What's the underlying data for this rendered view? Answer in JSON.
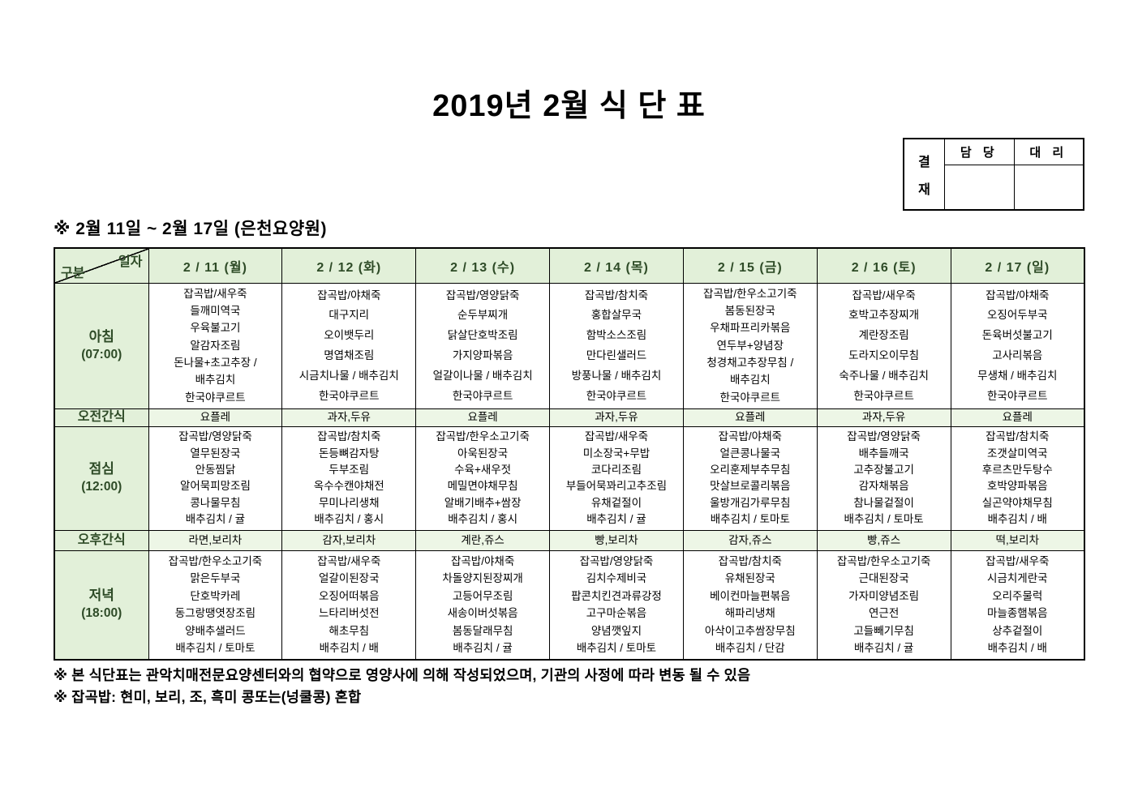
{
  "title": "2019년 2월 식 단 표",
  "approval": {
    "stamp": [
      "결",
      "재"
    ],
    "columns": [
      "담 당",
      "대 리"
    ]
  },
  "subtitle": "※ 2월 11일 ~ 2월 17일 (은천요양원)",
  "table": {
    "corner": {
      "top": "일자",
      "bottom": "구분"
    },
    "columns": [
      "2 / 11 (월)",
      "2 / 12 (화)",
      "2 / 13 (수)",
      "2 / 14 (목)",
      "2 / 15 (금)",
      "2 / 16 (토)",
      "2 / 17 (일)"
    ],
    "rows": [
      {
        "key": "breakfast",
        "type": "meal",
        "label": "아침",
        "time": "(07:00)",
        "cells": [
          [
            "잡곡밥/새우죽",
            "들깨미역국",
            "우육불고기",
            "알감자조림",
            "돈나물+초고추장 /",
            "배추김치",
            "한국야쿠르트"
          ],
          [
            "잡곡밥/야채죽",
            "대구지리",
            "오이뱃두리",
            "명엽채조림",
            "시금치나물 / 배추김치",
            "한국야쿠르트"
          ],
          [
            "잡곡밥/영양닭죽",
            "순두부찌개",
            "닭살단호박조림",
            "가지양파볶음",
            "얼갈이나물 / 배추김치",
            "한국야쿠르트"
          ],
          [
            "잡곡밥/참치죽",
            "홍합살무국",
            "함박소스조림",
            "만다린샐러드",
            "방풍나물 / 배추김치",
            "한국야쿠르트"
          ],
          [
            "잡곡밥/한우소고기죽",
            "봄동된장국",
            "우채파프리카볶음",
            "연두부+양념장",
            "청경채고추장무침 /",
            "배추김치",
            "한국야쿠르트"
          ],
          [
            "잡곡밥/새우죽",
            "호박고추장찌개",
            "계란장조림",
            "도라지오이무침",
            "숙주나물 / 배추김치",
            "한국야쿠르트"
          ],
          [
            "잡곡밥/야채죽",
            "오징어두부국",
            "돈육버섯불고기",
            "고사리볶음",
            "무생채 / 배추김치",
            "한국야쿠르트"
          ]
        ]
      },
      {
        "key": "morning-snack",
        "type": "snack",
        "label": "오전간식",
        "cells": [
          "요플레",
          "과자,두유",
          "요플레",
          "과자,두유",
          "요플레",
          "과자,두유",
          "요플레"
        ]
      },
      {
        "key": "lunch",
        "type": "meal",
        "label": "점심",
        "time": "(12:00)",
        "cells": [
          [
            "잡곡밥/영양닭죽",
            "열무된장국",
            "안동찜닭",
            "알어묵피망조림",
            "콩나물무침",
            "배추김치 / 귤"
          ],
          [
            "잡곡밥/참치죽",
            "돈등뼈감자탕",
            "두부조림",
            "옥수수캔야채전",
            "무미나리생채",
            "배추김치 / 홍시"
          ],
          [
            "잡곡밥/한우소고기죽",
            "아욱된장국",
            "수육+새우젓",
            "메밀면야채무침",
            "알배기배추+쌈장",
            "배추김치 / 홍시"
          ],
          [
            "잡곡밥/새우죽",
            "미소장국+무밥",
            "코다리조림",
            "부들어묵꽈리고추조림",
            "유채겉절이",
            "배추김치 / 귤"
          ],
          [
            "잡곡밥/야채죽",
            "얼큰콩나물국",
            "오리훈제부추무침",
            "맛살브로콜리볶음",
            "울방개김가루무침",
            "배추김치 / 토마토"
          ],
          [
            "잡곡밥/영양닭죽",
            "배추들깨국",
            "고추장불고기",
            "감자채볶음",
            "참나물겉절이",
            "배추김치 / 토마토"
          ],
          [
            "잡곡밥/참치죽",
            "조갯살미역국",
            "후르츠만두탕수",
            "호박양파볶음",
            "실곤약야채무침",
            "배추김치 / 배"
          ]
        ]
      },
      {
        "key": "afternoon-snack",
        "type": "snack",
        "label": "오후간식",
        "cells": [
          "라면,보리차",
          "감자,보리차",
          "계란,쥬스",
          "빵,보리차",
          "감자,쥬스",
          "빵,쥬스",
          "떡,보리차"
        ]
      },
      {
        "key": "dinner",
        "type": "meal",
        "label": "저녁",
        "time": "(18:00)",
        "cells": [
          [
            "잡곡밥/한우소고기죽",
            "맑은두부국",
            "단호박카레",
            "동그랑땡엿장조림",
            "양배추샐러드",
            "배추김치 / 토마토"
          ],
          [
            "잡곡밥/새우죽",
            "얼갈이된장국",
            "오징어떠볶음",
            "느타리버섯전",
            "해초무침",
            "배추김치 / 배"
          ],
          [
            "잡곡밥/야채죽",
            "차돌양지된장찌개",
            "고등어무조림",
            "새송이버섯볶음",
            "봄동달래무침",
            "배추김치 / 귤"
          ],
          [
            "잡곡밥/영양닭죽",
            "김치수제비국",
            "팝콘치킨견과류강정",
            "고구마순볶음",
            "양념깻잎지",
            "배추김치 / 토마토"
          ],
          [
            "잡곡밥/참치죽",
            "유채된장국",
            "베이컨마늘편볶음",
            "해파리냉채",
            "아삭이고추쌈장무침",
            "배추김치 / 단감"
          ],
          [
            "잡곡밥/한우소고기죽",
            "근대된장국",
            "가자미양념조림",
            "연근전",
            "고들빼기무침",
            "배추김치 / 귤"
          ],
          [
            "잡곡밥/새우죽",
            "시금치게란국",
            "오리주물럭",
            "마늘종햄볶음",
            "상추겉절이",
            "배추김치 / 배"
          ]
        ]
      }
    ]
  },
  "footnotes": [
    "※ 본 식단표는 관악치매전문요양센터와의 협약으로 영양사에 의해 작성되었으며, 기관의 사정에 따라 변동 될 수 있음",
    "※ 잡곡밥: 현미, 보리, 조, 흑미 콩또는(넝쿨콩) 혼합"
  ],
  "colors": {
    "header_green": "#e2f0d9",
    "snack_green": "#edf6e6",
    "header_text": "#2e4b27",
    "border": "#000000"
  }
}
